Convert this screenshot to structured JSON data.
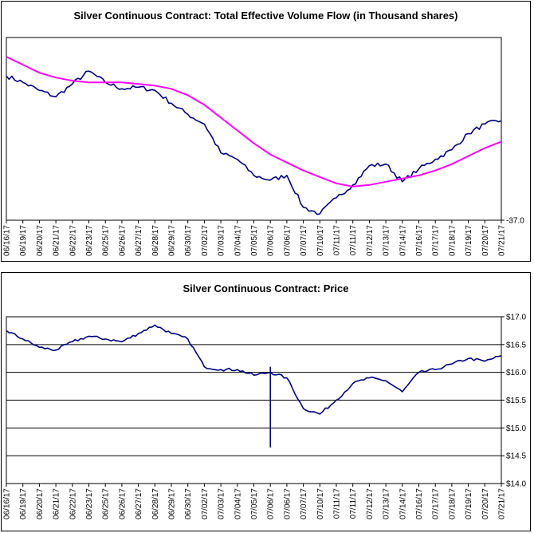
{
  "chart_data": [
    {
      "type": "line",
      "title": "Silver Continuous Contract: Total Effective Volume Flow (in Thousand shares)",
      "x_dates": [
        "06/16/17",
        "06/19/17",
        "06/20/17",
        "06/21/17",
        "06/22/17",
        "06/23/17",
        "06/25/17",
        "06/26/17",
        "06/27/17",
        "06/28/17",
        "06/29/17",
        "06/30/17",
        "07/02/17",
        "07/03/17",
        "07/04/17",
        "07/05/17",
        "07/06/17",
        "07/06/17",
        "07/07/17",
        "07/10/17",
        "07/11/17",
        "07/11/17",
        "07/12/17",
        "07/13/17",
        "07/14/17",
        "07/16/17",
        "07/17/17",
        "07/18/17",
        "07/19/17",
        "07/20/17",
        "07/21/17"
      ],
      "y_tick_labels": [
        "-37.0"
      ],
      "ylim": [
        -37.0,
        20.0
      ],
      "grid": false,
      "series": [
        {
          "color": "#000080",
          "values": [
            8.0,
            6.0,
            3.5,
            1.5,
            5.5,
            9.5,
            6.0,
            4.0,
            4.5,
            3.5,
            -0.5,
            -4.0,
            -7.0,
            -16.0,
            -18.0,
            -23.0,
            -24.5,
            -23.0,
            -33.0,
            -35.0,
            -30.0,
            -26.0,
            -20.0,
            -19.5,
            -25.0,
            -21.0,
            -18.0,
            -15.0,
            -10.0,
            -7.0,
            -6.0
          ]
        },
        {
          "color": "#ff00ff",
          "values": [
            14.0,
            11.5,
            9.0,
            7.5,
            6.5,
            6.0,
            6.0,
            6.0,
            5.5,
            5.0,
            4.0,
            2.0,
            -1.0,
            -5.0,
            -9.0,
            -13.0,
            -16.5,
            -19.0,
            -21.5,
            -23.5,
            -25.5,
            -26.5,
            -26.0,
            -25.0,
            -24.0,
            -23.0,
            -21.5,
            -19.5,
            -17.0,
            -14.5,
            -12.5
          ]
        }
      ]
    },
    {
      "type": "line",
      "title": "Silver Continuous Contract: Price",
      "x_dates": [
        "06/16/17",
        "06/19/17",
        "06/20/17",
        "06/21/17",
        "06/22/17",
        "06/23/17",
        "06/25/17",
        "06/26/17",
        "06/27/17",
        "06/28/17",
        "06/29/17",
        "06/30/17",
        "07/02/17",
        "07/03/17",
        "07/04/17",
        "07/05/17",
        "07/06/17",
        "07/06/17",
        "07/07/17",
        "07/10/17",
        "07/11/17",
        "07/11/17",
        "07/12/17",
        "07/13/17",
        "07/14/17",
        "07/16/17",
        "07/17/17",
        "07/18/17",
        "07/19/17",
        "07/20/17",
        "07/21/17"
      ],
      "y_ticks": [
        14.0,
        14.5,
        15.0,
        15.5,
        16.0,
        16.5,
        17.0
      ],
      "y_tick_labels": [
        "$14.0",
        "$14.5",
        "$15.0",
        "$15.5",
        "$16.0",
        "$16.5",
        "$17.0"
      ],
      "ylim": [
        14.0,
        17.0
      ],
      "grid": true,
      "series": [
        {
          "color": "#000080",
          "values": [
            16.75,
            16.6,
            16.45,
            16.4,
            16.55,
            16.65,
            16.6,
            16.55,
            16.7,
            16.85,
            16.7,
            16.6,
            16.1,
            16.05,
            16.05,
            15.95,
            16.0,
            15.9,
            15.35,
            15.25,
            15.5,
            15.8,
            15.9,
            15.85,
            15.65,
            16.0,
            16.05,
            16.15,
            16.25,
            16.2,
            16.3
          ]
        }
      ],
      "spike": {
        "date": "07/06/17",
        "low": 14.65,
        "high": 16.1
      }
    }
  ]
}
